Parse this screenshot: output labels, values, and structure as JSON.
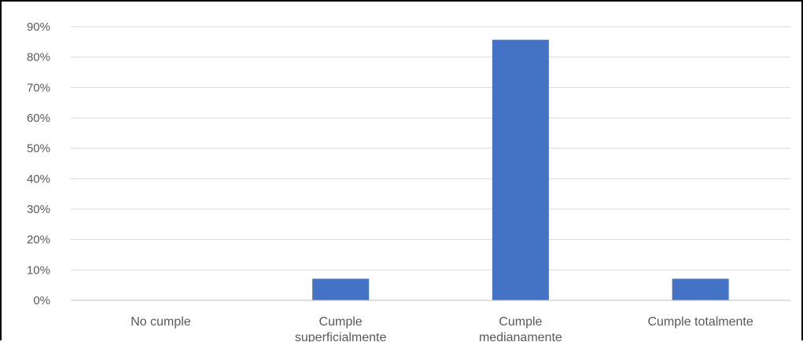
{
  "chart_data": {
    "type": "bar",
    "title": "",
    "xlabel": "",
    "ylabel": "",
    "categories": [
      "No cumple",
      "Cumple superficialmente",
      "Cumple medianamente",
      "Cumple totalmente"
    ],
    "category_label_lines": [
      [
        "No cumple"
      ],
      [
        "Cumple",
        "superficialmente"
      ],
      [
        "Cumple",
        "medianamente"
      ],
      [
        "Cumple totalmente"
      ]
    ],
    "values": [
      0,
      7.1,
      85.7,
      7.1
    ],
    "ylim": [
      0,
      90
    ],
    "yticks": [
      0,
      10,
      20,
      30,
      40,
      50,
      60,
      70,
      80,
      90
    ],
    "ytick_labels": [
      "0%",
      "10%",
      "20%",
      "30%",
      "40%",
      "50%",
      "60%",
      "70%",
      "80%",
      "90%"
    ],
    "grid": true,
    "legend": "none",
    "colors": {
      "bar": "#4472C4",
      "grid": "#D9D9D9",
      "axis": "#BFBFBF",
      "text": "#595959"
    }
  }
}
